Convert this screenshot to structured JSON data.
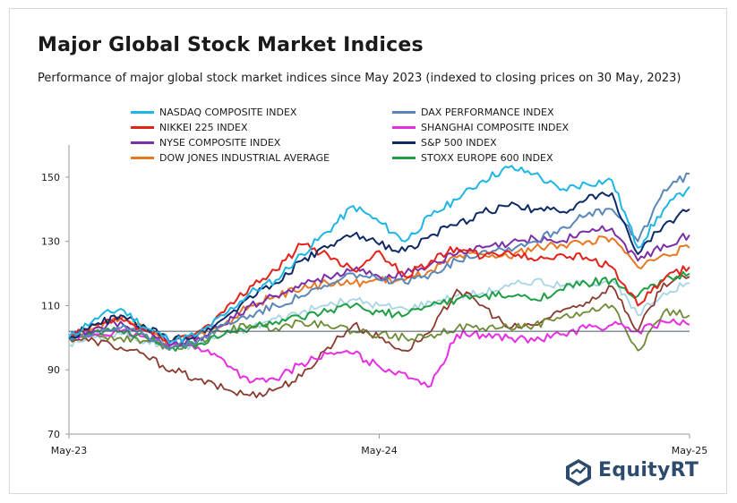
{
  "chart_data": {
    "type": "line",
    "title": "Major Global Stock Market Indices",
    "subtitle": "Performance of major global stock market indices since May 2023 (indexed to closing prices on 30 May, 2023)",
    "xlabel": "",
    "ylabel": "",
    "x_ticks": [
      "May-23",
      "May-24",
      "May-25"
    ],
    "xlim": [
      0,
      24
    ],
    "ylim": [
      70,
      160
    ],
    "y_ticks": [
      70,
      90,
      110,
      130,
      150
    ],
    "reference_line": 102,
    "grid": false,
    "legend_position": "top",
    "x": [
      0,
      1,
      2,
      3,
      4,
      5,
      6,
      7,
      8,
      9,
      10,
      11,
      12,
      13,
      14,
      15,
      16,
      17,
      18,
      19,
      20,
      21,
      22,
      23,
      24
    ],
    "series": [
      {
        "name": "NASDAQ COMPOSITE INDEX",
        "color": "#1fb5e5",
        "values": [
          100,
          106,
          109,
          103,
          99,
          101,
          107,
          114,
          118,
          126,
          133,
          141,
          136,
          130,
          138,
          143,
          149,
          153,
          151,
          146,
          148,
          149,
          128,
          140,
          147
        ]
      },
      {
        "name": "DAX PERFORMANCE INDEX",
        "color": "#5b86b8",
        "values": [
          100,
          102,
          103,
          101,
          97,
          99,
          104,
          107,
          110,
          113,
          116,
          120,
          118,
          117,
          120,
          124,
          127,
          128,
          130,
          134,
          138,
          140,
          130,
          146,
          151
        ]
      },
      {
        "name": "NIKKEI 225 INDEX",
        "color": "#e3221b",
        "values": [
          100,
          104,
          106,
          102,
          99,
          102,
          108,
          116,
          121,
          129,
          126,
          121,
          127,
          119,
          124,
          128,
          125,
          127,
          124,
          126,
          125,
          122,
          110,
          118,
          122
        ]
      },
      {
        "name": "SHANGHAI COMPOSITE INDEX",
        "color": "#e72ee3",
        "values": [
          100,
          101,
          102,
          100,
          98,
          97,
          93,
          86,
          87,
          92,
          95,
          95,
          91,
          89,
          85,
          101,
          101,
          100,
          99,
          101,
          103,
          104,
          102,
          105,
          104
        ]
      },
      {
        "name": "NYSE COMPOSITE INDEX",
        "color": "#7b2fa8",
        "values": [
          100,
          103,
          105,
          102,
          98,
          100,
          104,
          110,
          113,
          117,
          119,
          121,
          119,
          120,
          123,
          126,
          128,
          129,
          131,
          130,
          133,
          134,
          124,
          129,
          132
        ]
      },
      {
        "name": "S&P 500 INDEX",
        "color": "#0d2a66",
        "values": [
          100,
          104,
          107,
          103,
          99,
          101,
          106,
          113,
          117,
          124,
          128,
          132,
          129,
          127,
          132,
          135,
          139,
          141,
          140,
          139,
          143,
          145,
          126,
          135,
          140
        ]
      },
      {
        "name": "DOW JONES INDUSTRIAL AVERAGE",
        "color": "#e87722",
        "values": [
          100,
          103,
          106,
          102,
          99,
          101,
          104,
          110,
          113,
          115,
          117,
          117,
          118,
          118,
          121,
          125,
          126,
          125,
          128,
          129,
          130,
          131,
          122,
          126,
          128
        ]
      },
      {
        "name": "STOXX EUROPE 600 INDEX",
        "color": "#1f9e44",
        "values": [
          100,
          102,
          102,
          100,
          97,
          98,
          101,
          103,
          105,
          106,
          108,
          110,
          108,
          107,
          110,
          112,
          113,
          113,
          112,
          115,
          117,
          118,
          113,
          118,
          120
        ]
      }
    ],
    "extra_lines": [
      {
        "color": "#a8d4e6",
        "values": [
          98,
          100,
          101,
          99,
          97,
          98,
          101,
          103,
          106,
          108,
          110,
          112,
          110,
          109,
          111,
          113,
          114,
          116,
          118,
          116,
          117,
          118,
          107,
          114,
          117
        ]
      },
      {
        "color": "#8a3a2e",
        "values": [
          100,
          99,
          97,
          94,
          90,
          87,
          84,
          82,
          84,
          88,
          97,
          104,
          100,
          96,
          102,
          115,
          110,
          103,
          104,
          108,
          111,
          116,
          102,
          117,
          119
        ]
      },
      {
        "color": "#6f8a35",
        "values": [
          100,
          101,
          100,
          99,
          97,
          99,
          102,
          104,
          103,
          105,
          104,
          102,
          101,
          100,
          101,
          103,
          103,
          103,
          104,
          106,
          108,
          110,
          96,
          108,
          107
        ]
      }
    ]
  },
  "logo": {
    "text": "EquityRT"
  }
}
